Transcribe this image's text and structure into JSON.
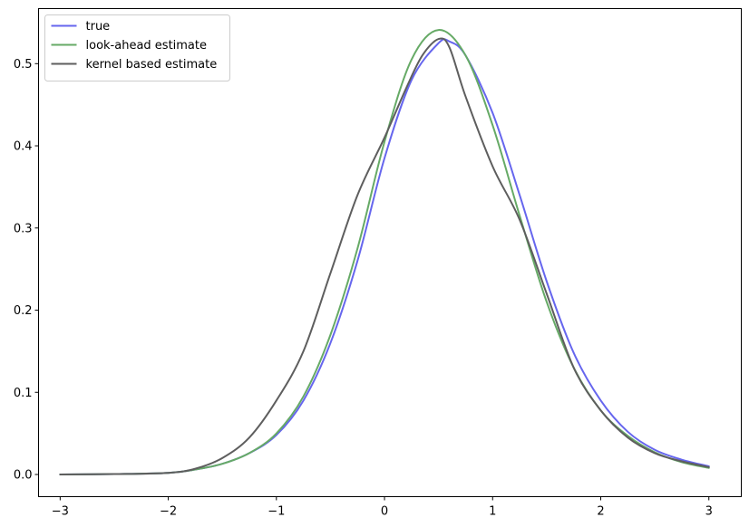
{
  "chart_data": {
    "type": "line",
    "title": "",
    "xlabel": "",
    "ylabel": "",
    "xlim": [
      -3.2,
      3.3
    ],
    "ylim": [
      -0.027,
      0.567
    ],
    "xticks": [
      -3,
      -2,
      -1,
      0,
      1,
      2,
      3
    ],
    "xtick_labels": [
      "−3",
      "−2",
      "−1",
      "0",
      "1",
      "2",
      "3"
    ],
    "yticks": [
      0.0,
      0.1,
      0.2,
      0.3,
      0.4,
      0.5
    ],
    "ytick_labels": [
      "0.0",
      "0.1",
      "0.2",
      "0.3",
      "0.4",
      "0.5"
    ],
    "grid": false,
    "legend_position": "top-left",
    "series": [
      {
        "name": "true",
        "color": "#6666ee",
        "x": [
          -3.0,
          -2.5,
          -2.0,
          -1.75,
          -1.5,
          -1.25,
          -1.0,
          -0.75,
          -0.5,
          -0.25,
          0.0,
          0.25,
          0.5,
          0.6,
          0.75,
          1.0,
          1.25,
          1.5,
          1.75,
          2.0,
          2.25,
          2.5,
          2.75,
          3.0
        ],
        "y": [
          0.0,
          0.0005,
          0.002,
          0.006,
          0.013,
          0.026,
          0.048,
          0.09,
          0.16,
          0.26,
          0.385,
          0.48,
          0.525,
          0.527,
          0.51,
          0.44,
          0.34,
          0.235,
          0.148,
          0.09,
          0.052,
          0.03,
          0.018,
          0.01
        ]
      },
      {
        "name": "look-ahead estimate",
        "color": "#66aa66",
        "x": [
          -3.0,
          -2.5,
          -2.0,
          -1.75,
          -1.5,
          -1.25,
          -1.0,
          -0.75,
          -0.5,
          -0.25,
          0.0,
          0.25,
          0.5,
          0.75,
          1.0,
          1.25,
          1.5,
          1.75,
          2.0,
          2.25,
          2.5,
          2.75,
          3.0
        ],
        "y": [
          0.0,
          0.0005,
          0.002,
          0.006,
          0.013,
          0.026,
          0.05,
          0.095,
          0.17,
          0.275,
          0.405,
          0.505,
          0.541,
          0.51,
          0.425,
          0.315,
          0.21,
          0.13,
          0.078,
          0.047,
          0.027,
          0.015,
          0.008
        ]
      },
      {
        "name": "kernel based estimate",
        "color": "#5e5e5e",
        "x": [
          -3.0,
          -2.5,
          -2.0,
          -1.75,
          -1.5,
          -1.25,
          -1.0,
          -0.75,
          -0.5,
          -0.25,
          0.0,
          0.2,
          0.35,
          0.5,
          0.6,
          0.75,
          1.0,
          1.25,
          1.5,
          1.75,
          2.0,
          2.25,
          2.5,
          2.75,
          3.0
        ],
        "y": [
          0.0,
          0.0005,
          0.002,
          0.007,
          0.02,
          0.045,
          0.09,
          0.15,
          0.245,
          0.34,
          0.41,
          0.47,
          0.51,
          0.53,
          0.52,
          0.46,
          0.375,
          0.31,
          0.22,
          0.13,
          0.078,
          0.045,
          0.026,
          0.016,
          0.009
        ]
      }
    ]
  }
}
